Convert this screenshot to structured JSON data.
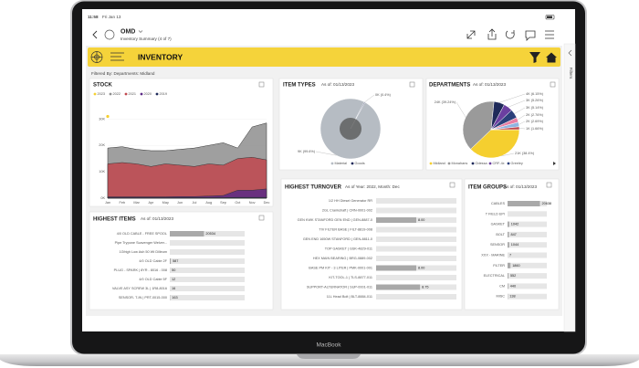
{
  "status_bar": {
    "time": "11:58",
    "date": "Fri Jan 13"
  },
  "toolbar": {
    "title": "OMD",
    "subtitle": "Inventory Summary (4 of 7)"
  },
  "header": {
    "title": "INVENTORY"
  },
  "filter_text": "Filtered By: Departments: Midland",
  "side_panel": {
    "label": "Filters"
  },
  "laptop": {
    "label": "MacBook"
  },
  "stock": {
    "type": "area",
    "title": "STOCK",
    "categories": [
      "Jan",
      "Feb",
      "Mar",
      "Apr",
      "May",
      "Jun",
      "Jul",
      "Aug",
      "Sep",
      "Oct",
      "Nov",
      "Dec"
    ],
    "series": [
      {
        "name": "2023",
        "color": "#f5cf2f",
        "values": [
          31000,
          null,
          null,
          null,
          null,
          null,
          null,
          null,
          null,
          null,
          null,
          null
        ]
      },
      {
        "name": "2022",
        "color": "#8e8e8e",
        "values": [
          19000,
          19500,
          18500,
          18000,
          18000,
          18500,
          19000,
          20000,
          21000,
          19000,
          27000,
          28500
        ]
      },
      {
        "name": "2021",
        "color": "#c0474d",
        "values": [
          13000,
          13500,
          13000,
          12000,
          13000,
          12500,
          12000,
          13000,
          12500,
          15000,
          15500,
          14500
        ]
      },
      {
        "name": "2020",
        "color": "#5b2a86",
        "values": [
          500,
          500,
          500,
          500,
          500,
          600,
          600,
          800,
          1000,
          3000,
          3000,
          3500
        ]
      },
      {
        "name": "2019",
        "color": "#1f2a5a",
        "values": [
          200,
          200,
          200,
          200,
          200,
          200,
          200,
          200,
          200,
          300,
          300,
          300
        ]
      }
    ],
    "ylim": [
      0,
      31500
    ],
    "yticks": [
      {
        "value": 0,
        "label": "0K"
      },
      {
        "value": 10000,
        "label": "10K"
      },
      {
        "value": 20000,
        "label": "20K"
      },
      {
        "value": 30000,
        "label": "30K"
      }
    ]
  },
  "item_types": {
    "type": "pie",
    "title": "ITEM TYPES",
    "as_of": "As of: 01/13/2023",
    "categories": [
      "Material",
      "Goods"
    ],
    "values": [
      99.6,
      0.4
    ],
    "value_labels": [
      "9K (99.6%)",
      "0K (0.4%)"
    ],
    "colors": [
      "#b6bcc3",
      "#1f2a5a"
    ]
  },
  "departments": {
    "type": "pie",
    "title": "DEPARTMENTS",
    "as_of": "As of: 01/13/2023",
    "categories": [
      "Midland",
      "Monahans",
      "Odessa",
      "CRF-4x",
      "Greeley",
      null,
      null,
      null
    ],
    "values": [
      38.4,
      39.24,
      6.15,
      5.26,
      5.14,
      2.76,
      2.69,
      1.66
    ],
    "value_labels": [
      "21K (38.4%)",
      "24K (39.24%)",
      "4K (6.15%)",
      "3K (5.26%)",
      "3K (5.14%)",
      "2K (2.76%)",
      "2K (2.69%)",
      "1K (1.66%)"
    ],
    "colors": [
      "#f5cf2f",
      "#9a9a9a",
      "#1f2a5a",
      "#6b3fa0",
      "#2b3f7a",
      "#e87fa3",
      "#8fb4e0",
      "#c0474d"
    ]
  },
  "highest_items": {
    "type": "hbar",
    "title": "HIGHEST ITEMS",
    "as_of": "As of: 01/13/2023",
    "categories": [
      "4/0 OLD CABLE - FREE SPOOL",
      "Pipe Trypone Scavenger Welver...",
      "1Gfrigh Low Ash 50 Wt Dilleum",
      "4/0 OLD Cable 2F",
      "PLUG - SPARK | 8YR - 8016 - 008",
      "4/0 OLD Cable 5F",
      "VALVE ASY SCREW 3L | 1R8-8016",
      "SENSOR- T-IN | PRT-0015-000"
    ],
    "values": [
      20534,
      null,
      null,
      587,
      50,
      12,
      16,
      163
    ],
    "xlim": [
      0,
      45000
    ],
    "color": "#a9a9a9"
  },
  "highest_turnover": {
    "type": "hbar",
    "title": "HIGHEST TURNOVER",
    "as_of": "As of Year: 2022, Month: Dec",
    "categories": [
      "1/2 HH Diesel Generator RR",
      "2GL Crankshaft | CRN-0001-002",
      "GEN KWK STANFORD GEN END | GEN-8887-0",
      "TIV FILTER BASE | FILT-8819-008",
      "GEN END 1650W STANFORD | GEN-8811-0",
      "TOP GASKET | GSK-4829-011",
      "HEX MAIN BEARING | BRG-0889-002",
      "BASE PM KIT - 3 LITER | PMK-0001-001",
      "KIT-TOOL-1 | TLS-8877-011",
      "SUPPORT-ALTERNATOR | SUP-0001-011",
      "11L Head Bolt | BLT-8884-011"
    ],
    "values": [
      null,
      null,
      8,
      null,
      null,
      null,
      null,
      8,
      null,
      8.75,
      null
    ],
    "value_labels": [
      null,
      null,
      "8.00",
      null,
      null,
      null,
      null,
      "8.00",
      null,
      "8.75",
      null
    ],
    "xlim": [
      0,
      16
    ],
    "color": "#a9a9a9"
  },
  "item_groups": {
    "type": "hbar",
    "title": "ITEM GROUPS",
    "as_of": "As of: 01/13/2023",
    "categories": [
      "CABLES",
      "T FIELD EPI",
      "GASKET",
      "BOLT",
      "SENSOR",
      "XXX - MARINE",
      "FILTER",
      "ELECTRICAL",
      "CM",
      "MISC"
    ],
    "values": [
      20638,
      null,
      1042,
      847,
      1044,
      7,
      1860,
      552,
      440,
      138
    ],
    "xlim": [
      0,
      25000
    ],
    "color": "#a9a9a9"
  }
}
